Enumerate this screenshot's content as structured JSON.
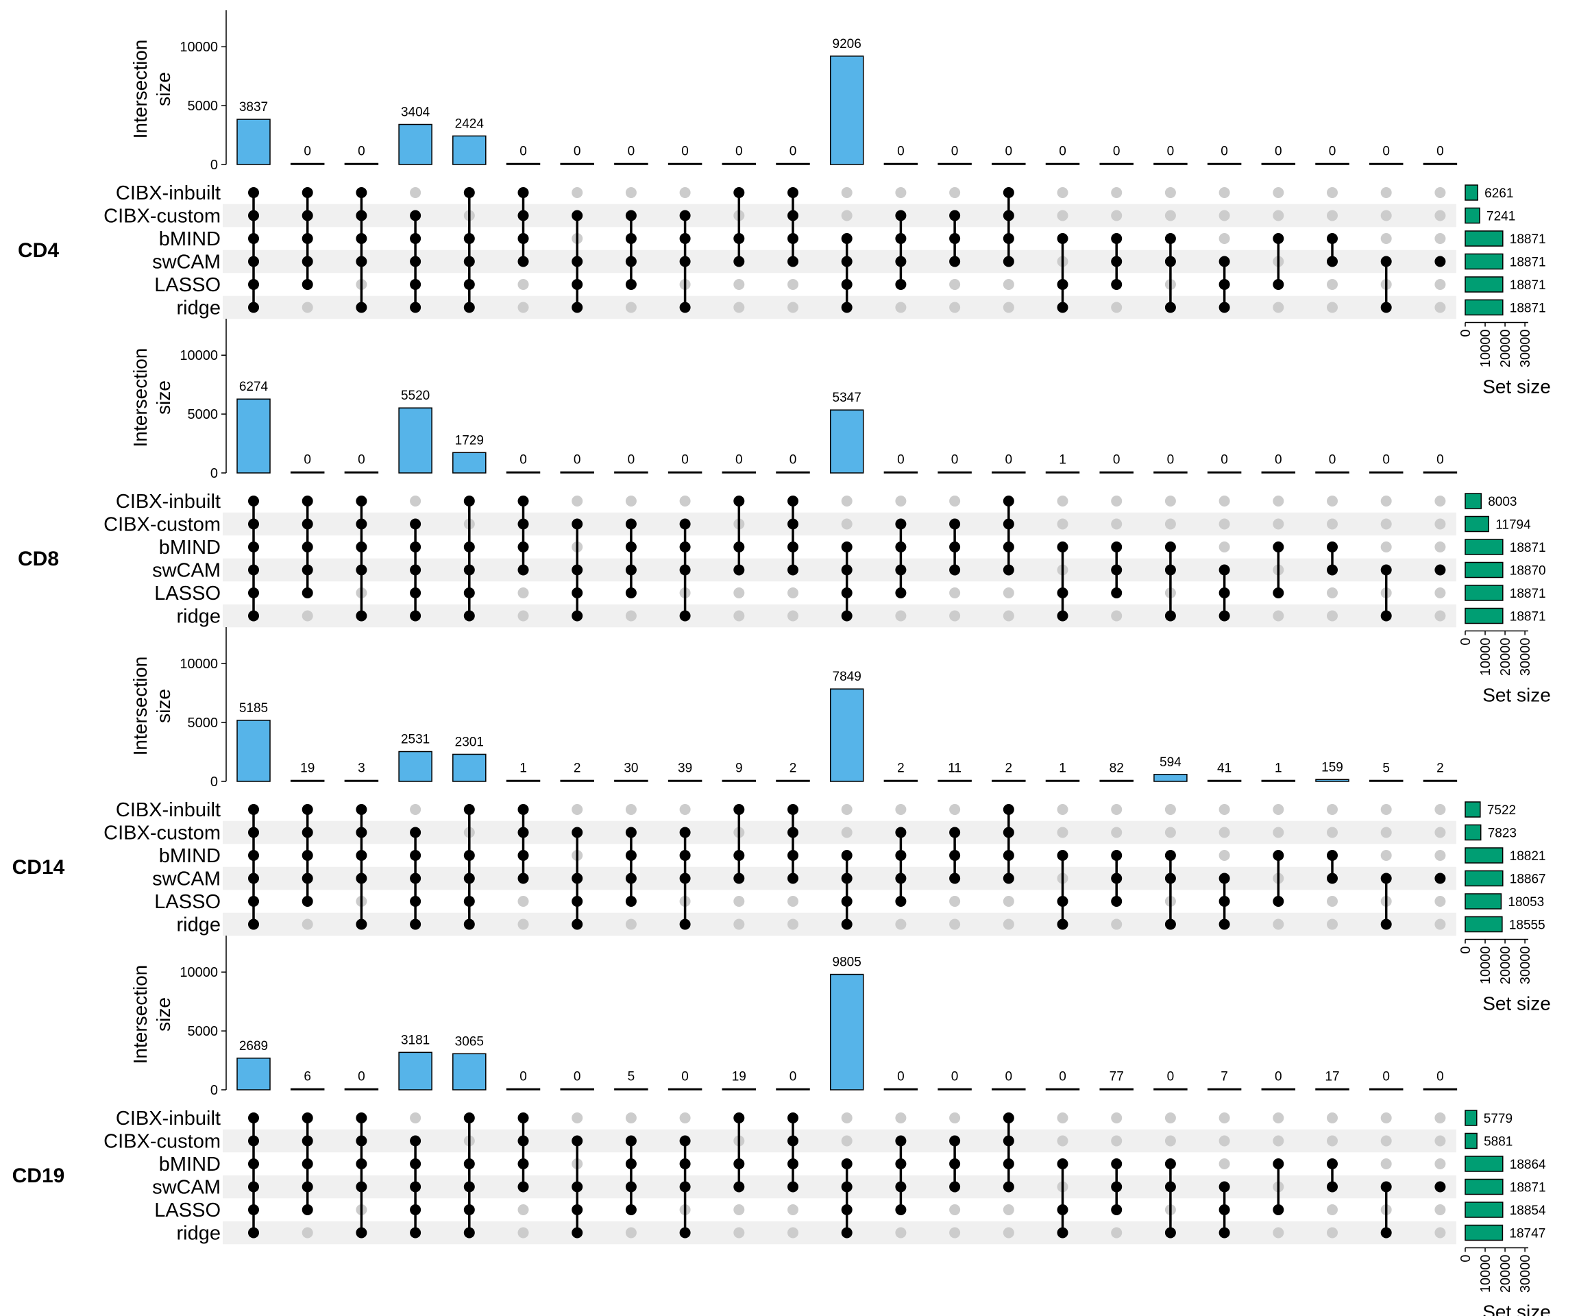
{
  "colors": {
    "intersection_bar": "#56B4E9",
    "set_bar": "#009E73",
    "dot_active": "#000000",
    "dot_inactive": "#cccccc",
    "stripe": "#f0f0f0"
  },
  "chart_data": {
    "type": "upset",
    "sets": [
      "CIBX-inbuilt",
      "CIBX-custom",
      "bMIND",
      "swCAM",
      "LASSO",
      "ridge"
    ],
    "intersections": [
      [
        1,
        1,
        1,
        1,
        1,
        1
      ],
      [
        1,
        1,
        1,
        1,
        1,
        0
      ],
      [
        1,
        1,
        1,
        1,
        0,
        1
      ],
      [
        0,
        1,
        1,
        1,
        1,
        1
      ],
      [
        1,
        0,
        1,
        1,
        1,
        1
      ],
      [
        1,
        1,
        1,
        1,
        0,
        0
      ],
      [
        0,
        1,
        0,
        1,
        1,
        1
      ],
      [
        0,
        1,
        1,
        1,
        1,
        0
      ],
      [
        0,
        1,
        1,
        1,
        0,
        1
      ],
      [
        1,
        0,
        1,
        1,
        0,
        0
      ],
      [
        1,
        1,
        1,
        1,
        0,
        0
      ],
      [
        0,
        0,
        1,
        1,
        1,
        1
      ],
      [
        0,
        1,
        1,
        1,
        1,
        0
      ],
      [
        0,
        1,
        1,
        1,
        0,
        0
      ],
      [
        1,
        1,
        1,
        1,
        0,
        0
      ],
      [
        0,
        0,
        1,
        0,
        1,
        1
      ],
      [
        0,
        0,
        1,
        1,
        1,
        0
      ],
      [
        0,
        0,
        1,
        1,
        0,
        1
      ],
      [
        0,
        0,
        0,
        1,
        1,
        1
      ],
      [
        0,
        0,
        1,
        0,
        1,
        0
      ],
      [
        0,
        0,
        1,
        1,
        0,
        0
      ],
      [
        0,
        0,
        0,
        1,
        0,
        1
      ],
      [
        0,
        0,
        0,
        1,
        0,
        0
      ]
    ],
    "intersection_axis": {
      "title": [
        "Intersection",
        "size"
      ],
      "ticks": [
        0,
        5000,
        10000
      ],
      "max": 12400
    },
    "set_axis": {
      "title": "Set size",
      "ticks": [
        0,
        10000,
        20000,
        30000
      ],
      "max": 31000
    },
    "panels": [
      {
        "name": "CD4",
        "intersection_sizes": [
          3837,
          0,
          0,
          3404,
          2424,
          0,
          0,
          0,
          0,
          0,
          0,
          9206,
          0,
          0,
          0,
          0,
          0,
          0,
          0,
          0,
          0,
          0,
          0
        ],
        "set_sizes": [
          6261,
          7241,
          18871,
          18871,
          18871,
          18871
        ],
        "show_set_axis": true
      },
      {
        "name": "CD8",
        "intersection_sizes": [
          6274,
          0,
          0,
          5520,
          1729,
          0,
          0,
          0,
          0,
          0,
          0,
          5347,
          0,
          0,
          0,
          1,
          0,
          0,
          0,
          0,
          0,
          0,
          0
        ],
        "set_sizes": [
          8003,
          11794,
          18871,
          18870,
          18871,
          18871
        ],
        "show_set_axis": true
      },
      {
        "name": "CD14",
        "intersection_sizes": [
          5185,
          19,
          3,
          2531,
          2301,
          1,
          2,
          30,
          39,
          9,
          2,
          7849,
          2,
          11,
          2,
          1,
          82,
          594,
          41,
          1,
          159,
          5,
          2
        ],
        "set_sizes": [
          7522,
          7823,
          18821,
          18867,
          18053,
          18555
        ],
        "show_set_axis": true
      },
      {
        "name": "CD19",
        "intersection_sizes": [
          2689,
          6,
          0,
          3181,
          3065,
          0,
          0,
          5,
          0,
          19,
          0,
          9805,
          0,
          0,
          0,
          0,
          77,
          0,
          7,
          0,
          17,
          0,
          0
        ],
        "set_sizes": [
          5779,
          5881,
          18864,
          18871,
          18854,
          18747
        ],
        "show_set_axis": true
      }
    ]
  }
}
